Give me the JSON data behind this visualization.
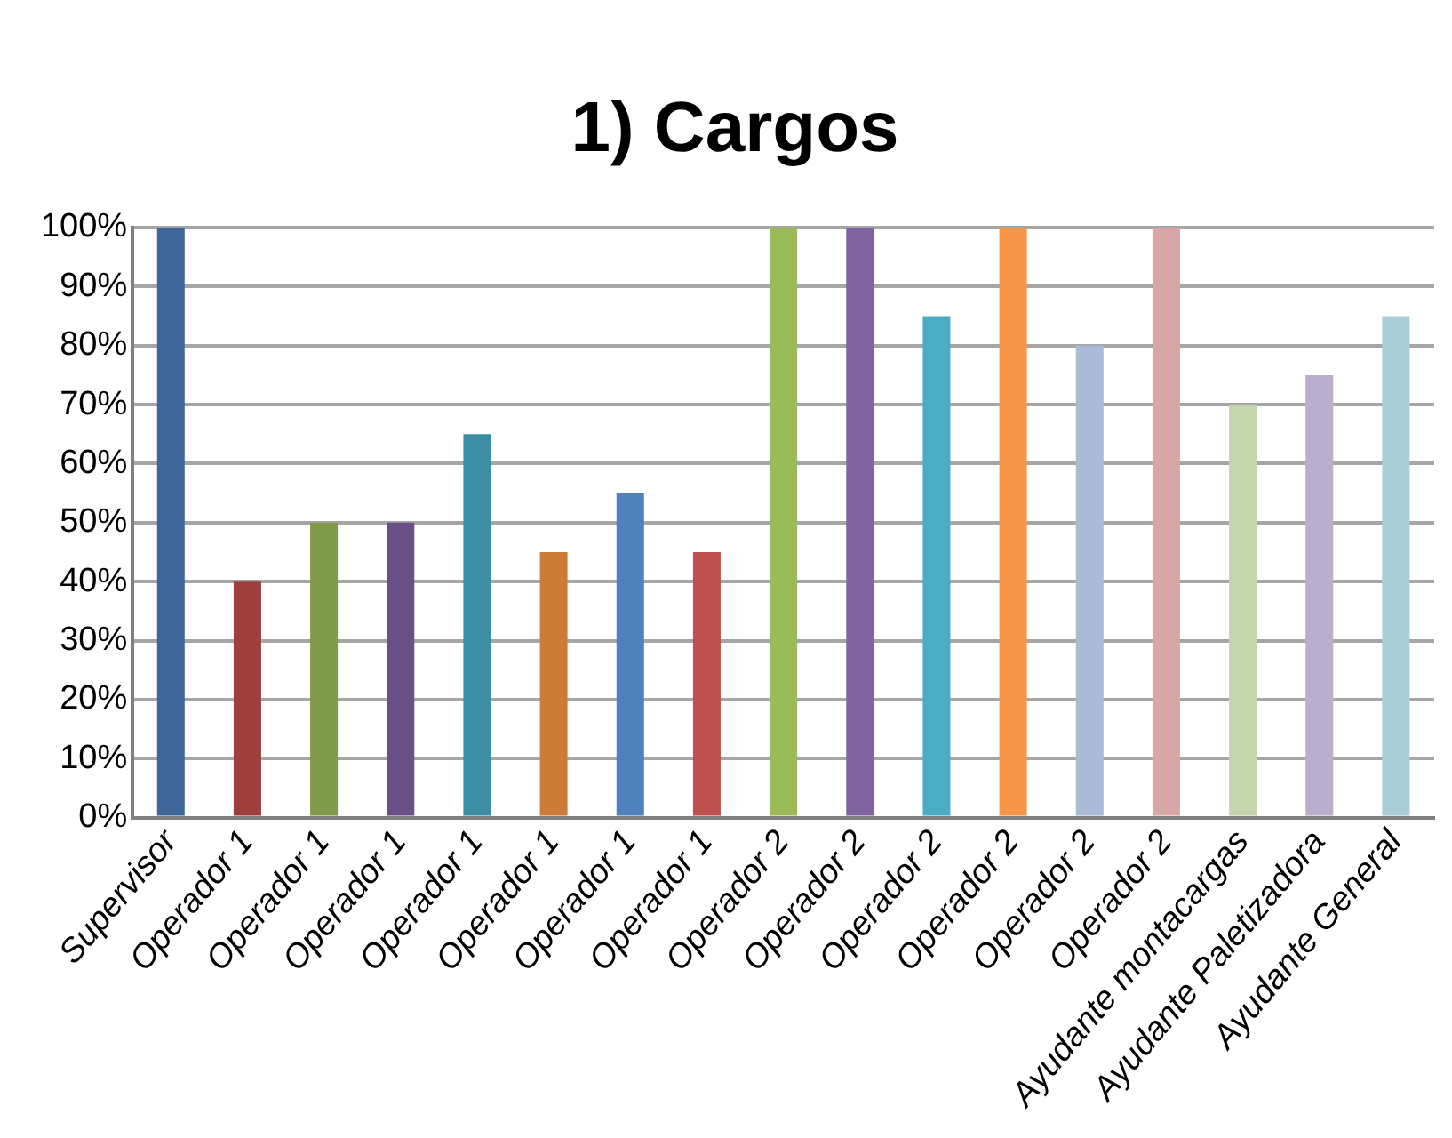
{
  "chart_data": {
    "type": "bar",
    "title": "1) Cargos",
    "categories": [
      "Supervisor",
      "Operador 1",
      "Operador 1",
      "Operador 1",
      "Operador 1",
      "Operador 1",
      "Operador 1",
      "Operador 1",
      "Operador 2",
      "Operador 2",
      "Operador 2",
      "Operador 2",
      "Operador 2",
      "Operador 2",
      "Ayudante montacargas",
      "Ayudante Paletizadora",
      "Ayudante General"
    ],
    "values": [
      100,
      40,
      50,
      50,
      65,
      45,
      55,
      45,
      100,
      100,
      85,
      100,
      80,
      100,
      70,
      75,
      85
    ],
    "colors": [
      "#3f6699",
      "#9e3f3d",
      "#7f9a48",
      "#6a5087",
      "#3c8ea5",
      "#cc7b38",
      "#4f81bd",
      "#c0504d",
      "#9bbb59",
      "#8064a2",
      "#4bacc6",
      "#f79646",
      "#aabad7",
      "#d9a6a6",
      "#c6d6ac",
      "#b9aecb",
      "#a9ceda"
    ],
    "ylim": [
      0,
      100
    ],
    "yticks": [
      {
        "value": 0,
        "label": "0%"
      },
      {
        "value": 10,
        "label": "10%"
      },
      {
        "value": 20,
        "label": "20%"
      },
      {
        "value": 30,
        "label": "30%"
      },
      {
        "value": 40,
        "label": "40%"
      },
      {
        "value": 50,
        "label": "50%"
      },
      {
        "value": 60,
        "label": "60%"
      },
      {
        "value": 70,
        "label": "70%"
      },
      {
        "value": 80,
        "label": "80%"
      },
      {
        "value": 90,
        "label": "90%"
      },
      {
        "value": 100,
        "label": "100%"
      }
    ],
    "grid": "y",
    "legend": false
  }
}
